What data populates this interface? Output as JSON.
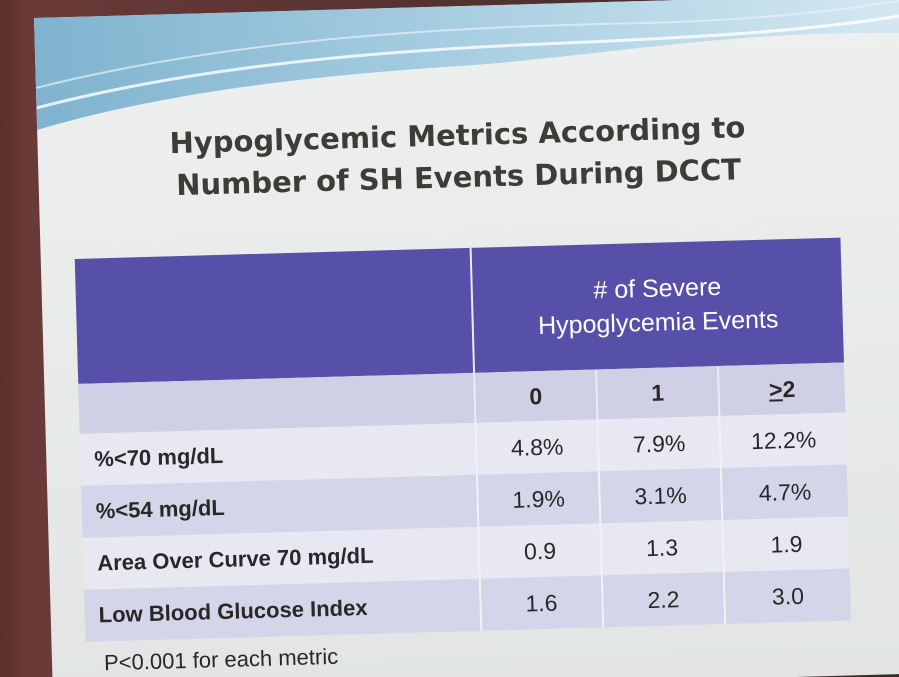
{
  "slide": {
    "title_line1": "Hypoglycemic Metrics According to",
    "title_line2": "Number of SH Events During DCCT",
    "table": {
      "group_header_line1": "# of Severe",
      "group_header_line2": "Hypoglycemia Events",
      "columns": [
        "0",
        "1",
        "2"
      ],
      "column_prefix_underlined": ">",
      "rows": [
        {
          "label": "%<70 mg/dL",
          "values": [
            "4.8%",
            "7.9%",
            "12.2%"
          ]
        },
        {
          "label": "%<54 mg/dL",
          "values": [
            "1.9%",
            "3.1%",
            "4.7%"
          ]
        },
        {
          "label": "Area Over Curve 70 mg/dL",
          "values": [
            "0.9",
            "1.3",
            "1.9"
          ]
        },
        {
          "label": "Low Blood Glucose Index",
          "values": [
            "1.6",
            "2.2",
            "3.0"
          ]
        }
      ]
    },
    "footnote": "P<0.001 for each metric"
  }
}
